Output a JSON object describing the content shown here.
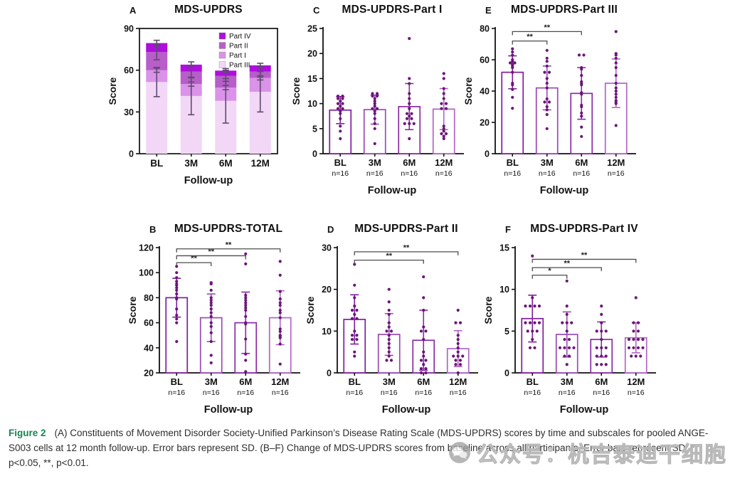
{
  "shared": {
    "categories": [
      "BL",
      "3M",
      "6M",
      "12M"
    ],
    "n_labels": [
      "n=16",
      "n=16",
      "n=16",
      "n=16"
    ],
    "ylabel": "Score",
    "xlabel": "Follow-up"
  },
  "colors": {
    "part_iv": "#ad0fdc",
    "part_ii": "#b75ec9",
    "part_i": "#da93e8",
    "part_iii": "#f2d7f7",
    "bar_strokes": [
      "#801da0",
      "#9a4ab4",
      "#8a2ba6",
      "#b165c5"
    ],
    "dot": "#6b1578",
    "stacked_error": "#5d4b70",
    "bracket": "#4d4d4d",
    "axis": "#111111",
    "figure_label_green": "#178552",
    "watermark_gray": "#bdbdbd"
  },
  "chart_data": [
    {
      "panel": "A",
      "type": "stacked-bar",
      "title": "MDS-UPDRS",
      "ylabel": "Score",
      "xlabel": "Follow-up",
      "categories": [
        "BL",
        "3M",
        "6M",
        "12M"
      ],
      "ylim": [
        0,
        90
      ],
      "yticks": [
        0,
        30,
        60,
        90
      ],
      "series": [
        {
          "name": "Part III",
          "color": "#f2d7f7",
          "values": [
            51.5,
            41.5,
            38.0,
            44.5
          ],
          "sds": [
            10.5,
            13.5,
            16.0,
            14.5
          ]
        },
        {
          "name": "Part I",
          "color": "#da93e8",
          "values": [
            8.5,
            8.5,
            9.5,
            10.0
          ],
          "sds": [
            1.5,
            1.5,
            1.5,
            1.5
          ]
        },
        {
          "name": "Part II",
          "color": "#b75ec9",
          "values": [
            13.0,
            9.0,
            8.5,
            4.5
          ],
          "sds": [
            5.5,
            4.5,
            4.0,
            4.0
          ]
        },
        {
          "name": "Part IV",
          "color": "#ad0fdc",
          "values": [
            6.5,
            5.0,
            3.7,
            4.5
          ],
          "sds": [
            2.0,
            2.0,
            1.5,
            1.5
          ]
        }
      ],
      "legend_order": [
        "Part IV",
        "Part II",
        "Part I",
        "Part III"
      ]
    },
    {
      "panel": "C",
      "type": "bar-scatter",
      "title": "MDS-UPDRS-Part I",
      "ylabel": "Score",
      "xlabel": "Follow-up",
      "categories": [
        "BL",
        "3M",
        "6M",
        "12M"
      ],
      "ylim": [
        0,
        25
      ],
      "yticks": [
        0,
        5,
        10,
        15,
        20,
        25
      ],
      "means": [
        8.7,
        8.8,
        9.4,
        8.9
      ],
      "sds": [
        2.7,
        2.9,
        4.6,
        4.1
      ],
      "dots": [
        [
          11.5,
          11.5,
          11,
          11,
          10.5,
          10,
          10,
          9.5,
          9,
          9,
          8.5,
          8,
          7,
          5.5,
          4.5,
          3
        ],
        [
          12,
          12,
          11.5,
          11.5,
          11,
          10.5,
          10,
          9.5,
          9,
          9,
          8.5,
          8,
          7,
          6,
          5,
          2
        ],
        [
          23,
          15,
          14,
          12,
          11,
          10,
          9,
          8,
          8,
          7.5,
          7,
          7,
          6,
          6,
          6,
          3
        ],
        [
          16,
          15,
          13,
          12,
          11,
          10,
          10,
          9,
          9,
          5.5,
          5,
          4.5,
          4,
          4,
          3.5,
          3
        ]
      ],
      "brackets": []
    },
    {
      "panel": "E",
      "type": "bar-scatter",
      "title": "MDS-UPDRS-Part III",
      "ylabel": "Score",
      "xlabel": "Follow-up",
      "categories": [
        "BL",
        "3M",
        "6M",
        "12M"
      ],
      "ylim": [
        0,
        80
      ],
      "yticks": [
        0,
        20,
        40,
        60,
        80
      ],
      "means": [
        52,
        42,
        38.5,
        45
      ],
      "sds": [
        10.5,
        14,
        16.5,
        15.5
      ],
      "dots": [
        [
          67,
          65,
          63,
          60,
          59,
          58,
          58,
          57,
          56,
          55,
          52,
          45,
          44,
          41,
          36,
          29
        ],
        [
          66,
          61,
          59,
          56,
          52,
          52,
          48,
          45,
          42,
          35,
          33,
          33,
          30,
          28,
          25,
          16
        ],
        [
          63,
          63,
          55,
          54,
          50,
          46,
          45,
          44,
          39,
          38,
          31,
          30,
          26,
          24,
          17,
          11
        ],
        [
          78,
          64,
          63,
          61,
          58,
          55,
          50,
          45,
          42,
          40,
          38,
          36,
          34,
          33,
          32,
          18
        ]
      ],
      "brackets": [
        {
          "from": 0,
          "to": 1,
          "y": 72,
          "label": "**"
        },
        {
          "from": 0,
          "to": 2,
          "y": 78,
          "label": "**"
        }
      ]
    },
    {
      "panel": "B",
      "type": "bar-scatter",
      "title": "MDS-UPDRS-TOTAL",
      "ylabel": "Score",
      "xlabel": "Follow-up",
      "categories": [
        "BL",
        "3M",
        "6M",
        "12M"
      ],
      "ylim": [
        20,
        120
      ],
      "yticks": [
        20,
        40,
        60,
        80,
        100,
        120
      ],
      "means": [
        80,
        64,
        60,
        64
      ],
      "sds": [
        15.5,
        19,
        24.5,
        21.5
      ],
      "dots": [
        [
          105,
          100,
          96,
          93,
          91,
          90,
          88,
          86,
          83,
          80,
          79,
          71,
          66,
          63,
          60,
          45
        ],
        [
          92,
          91,
          86,
          80,
          78,
          76,
          74,
          71,
          68,
          65,
          60,
          57,
          52,
          45,
          34,
          28
        ],
        [
          115,
          107,
          82,
          80,
          78,
          76,
          74,
          72,
          70,
          65,
          60,
          59,
          47,
          35,
          30,
          21
        ],
        [
          109,
          98,
          85,
          79,
          76,
          74,
          70,
          68,
          64,
          55,
          53,
          50,
          49,
          48,
          43,
          27
        ]
      ],
      "brackets": [
        {
          "from": 0,
          "to": 1,
          "y": 108,
          "label": "**"
        },
        {
          "from": 0,
          "to": 2,
          "y": 113.5,
          "label": "**"
        },
        {
          "from": 0,
          "to": 3,
          "y": 119,
          "label": "**"
        }
      ]
    },
    {
      "panel": "D",
      "type": "bar-scatter",
      "title": "MDS-UPDRS-Part II",
      "ylabel": "Score",
      "xlabel": "Follow-up",
      "categories": [
        "BL",
        "3M",
        "6M",
        "12M"
      ],
      "ylim": [
        0,
        30
      ],
      "yticks": [
        0,
        10,
        20,
        30
      ],
      "means": [
        12.8,
        9.2,
        7.8,
        5.8
      ],
      "sds": [
        5.9,
        5.0,
        7.2,
        4.3
      ],
      "dots": [
        [
          26,
          21,
          18,
          16,
          15,
          15,
          14,
          13,
          13,
          10,
          9,
          9,
          8,
          8,
          5,
          4
        ],
        [
          20,
          17,
          15,
          14,
          12,
          11,
          10,
          10,
          9,
          8,
          7,
          6,
          5,
          4,
          3,
          3
        ],
        [
          23,
          18,
          15,
          11,
          10,
          10,
          8,
          5,
          4,
          3,
          3,
          2,
          1,
          1,
          0,
          0
        ],
        [
          15,
          12,
          12,
          9,
          8,
          7,
          6,
          5,
          4,
          4,
          4,
          3,
          3,
          2,
          2,
          0
        ]
      ],
      "brackets": [
        {
          "from": 0,
          "to": 2,
          "y": 27,
          "label": "**"
        },
        {
          "from": 0,
          "to": 3,
          "y": 29,
          "label": "**"
        }
      ]
    },
    {
      "panel": "F",
      "type": "bar-scatter",
      "title": "MDS-UPDRS-Part IV",
      "ylabel": "Score",
      "xlabel": "Follow-up",
      "categories": [
        "BL",
        "3M",
        "6M",
        "12M"
      ],
      "ylim": [
        0,
        15
      ],
      "yticks": [
        0,
        5,
        10,
        15
      ],
      "means": [
        6.5,
        4.6,
        4.0,
        4.2
      ],
      "sds": [
        2.8,
        2.7,
        2.1,
        1.8
      ],
      "dots": [
        [
          14,
          9,
          8,
          8,
          8,
          8,
          6,
          6,
          6,
          6,
          5,
          5,
          5,
          4,
          3,
          3
        ],
        [
          11,
          8,
          7,
          6,
          6,
          6,
          5,
          4,
          4,
          3,
          3,
          3,
          3,
          2,
          2,
          1
        ],
        [
          8,
          7,
          6,
          5,
          5,
          5,
          4,
          3,
          3,
          3,
          2,
          2,
          2,
          1,
          1,
          1
        ],
        [
          9,
          6,
          6,
          5,
          5,
          4,
          4,
          4,
          4,
          3,
          3,
          3,
          3,
          2,
          2,
          2
        ]
      ],
      "brackets": [
        {
          "from": 0,
          "to": 1,
          "y": 11.7,
          "label": "*"
        },
        {
          "from": 0,
          "to": 2,
          "y": 12.6,
          "label": "**"
        },
        {
          "from": 0,
          "to": 3,
          "y": 13.6,
          "label": "**"
        }
      ]
    }
  ],
  "caption": {
    "label": "Figure 2",
    "text": "(A) Constituents of Movement Disorder Society-Unified Parkinson’s Disease Rating Scale (MDS-UPDRS) scores by time and subscales for pooled ANGE-S003 cells at 12 month follow-up. Error bars represent SD. (B–F) Change of MDS-UPDRS scores from baseline across all participants. Error bars represent SD. *, p<0.05, **, p<0.01."
  },
  "watermark": {
    "icon": "wechat-icon",
    "text": "公众号：杭吉泰迪干细胞"
  }
}
